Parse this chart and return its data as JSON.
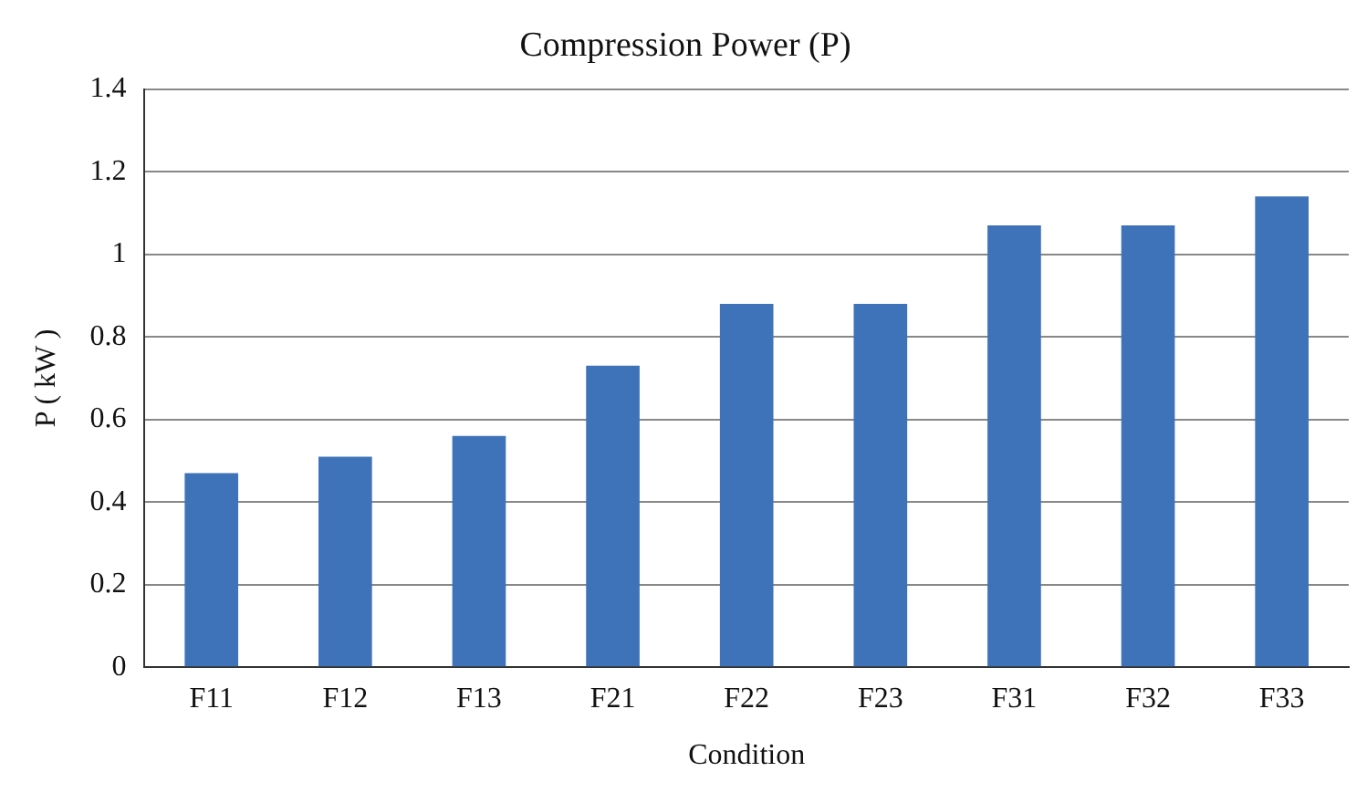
{
  "chart_data": {
    "type": "bar",
    "title": "Compression Power (P)",
    "xlabel": "Condition",
    "ylabel": "P ( kW )",
    "categories": [
      "F11",
      "F12",
      "F13",
      "F21",
      "F22",
      "F23",
      "F31",
      "F32",
      "F33"
    ],
    "values": [
      0.47,
      0.51,
      0.56,
      0.73,
      0.88,
      0.88,
      1.07,
      1.07,
      1.14
    ],
    "color": "#3f73b9",
    "ylim": [
      0,
      1.4
    ],
    "yticks": [
      0,
      0.2,
      0.4,
      0.6,
      0.8,
      1,
      1.2,
      1.4
    ],
    "grid": "y",
    "legend": false
  }
}
